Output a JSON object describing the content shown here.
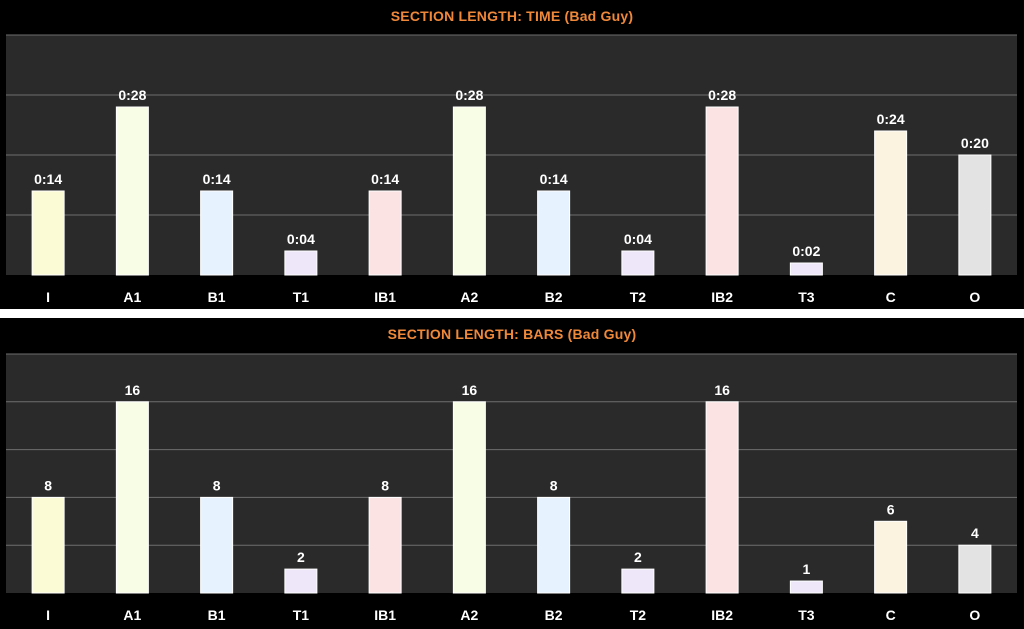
{
  "colors": {
    "title": "#f0883a",
    "plot_bg": "#2a2a2a",
    "grid": "#6e6e6e",
    "text": "#ffffff"
  },
  "chart_data": [
    {
      "type": "bar",
      "title": "SECTION LENGTH: TIME (Bad Guy)",
      "categories": [
        "I",
        "A1",
        "B1",
        "T1",
        "IB1",
        "A2",
        "B2",
        "T2",
        "IB2",
        "T3",
        "C",
        "O"
      ],
      "values": [
        14,
        28,
        14,
        4,
        14,
        28,
        14,
        4,
        28,
        2,
        24,
        20
      ],
      "value_unit": "seconds",
      "data_labels": [
        "0:14",
        "0:28",
        "0:14",
        "0:04",
        "0:14",
        "0:28",
        "0:14",
        "0:04",
        "0:28",
        "0:02",
        "0:24",
        "0:20"
      ],
      "bar_colors": [
        "#fbfbd6",
        "#f8fde6",
        "#e6f2fd",
        "#ede7f9",
        "#fbe3e3",
        "#f8fde6",
        "#e6f2fd",
        "#ede7f9",
        "#fbe3e3",
        "#ede7f9",
        "#fbf3e0",
        "#e3e3e3"
      ],
      "ylim": [
        0,
        40
      ],
      "yticks": [
        0,
        10,
        20,
        30,
        40
      ],
      "grid": true,
      "legend": false,
      "xlabel": "",
      "ylabel": ""
    },
    {
      "type": "bar",
      "title": "SECTION LENGTH: BARS (Bad Guy)",
      "categories": [
        "I",
        "A1",
        "B1",
        "T1",
        "IB1",
        "A2",
        "B2",
        "T2",
        "IB2",
        "T3",
        "C",
        "O"
      ],
      "values": [
        8,
        16,
        8,
        2,
        8,
        16,
        8,
        2,
        16,
        1,
        6,
        4
      ],
      "data_labels": [
        "8",
        "16",
        "8",
        "2",
        "8",
        "16",
        "8",
        "2",
        "16",
        "1",
        "6",
        "4"
      ],
      "bar_colors": [
        "#fbfbd6",
        "#f8fde6",
        "#e6f2fd",
        "#ede7f9",
        "#fbe3e3",
        "#f8fde6",
        "#e6f2fd",
        "#ede7f9",
        "#fbe3e3",
        "#ede7f9",
        "#fbf3e0",
        "#e3e3e3"
      ],
      "ylim": [
        0,
        20
      ],
      "yticks": [
        0,
        4,
        8,
        12,
        16,
        20
      ],
      "grid": true,
      "legend": false,
      "xlabel": "",
      "ylabel": ""
    }
  ]
}
